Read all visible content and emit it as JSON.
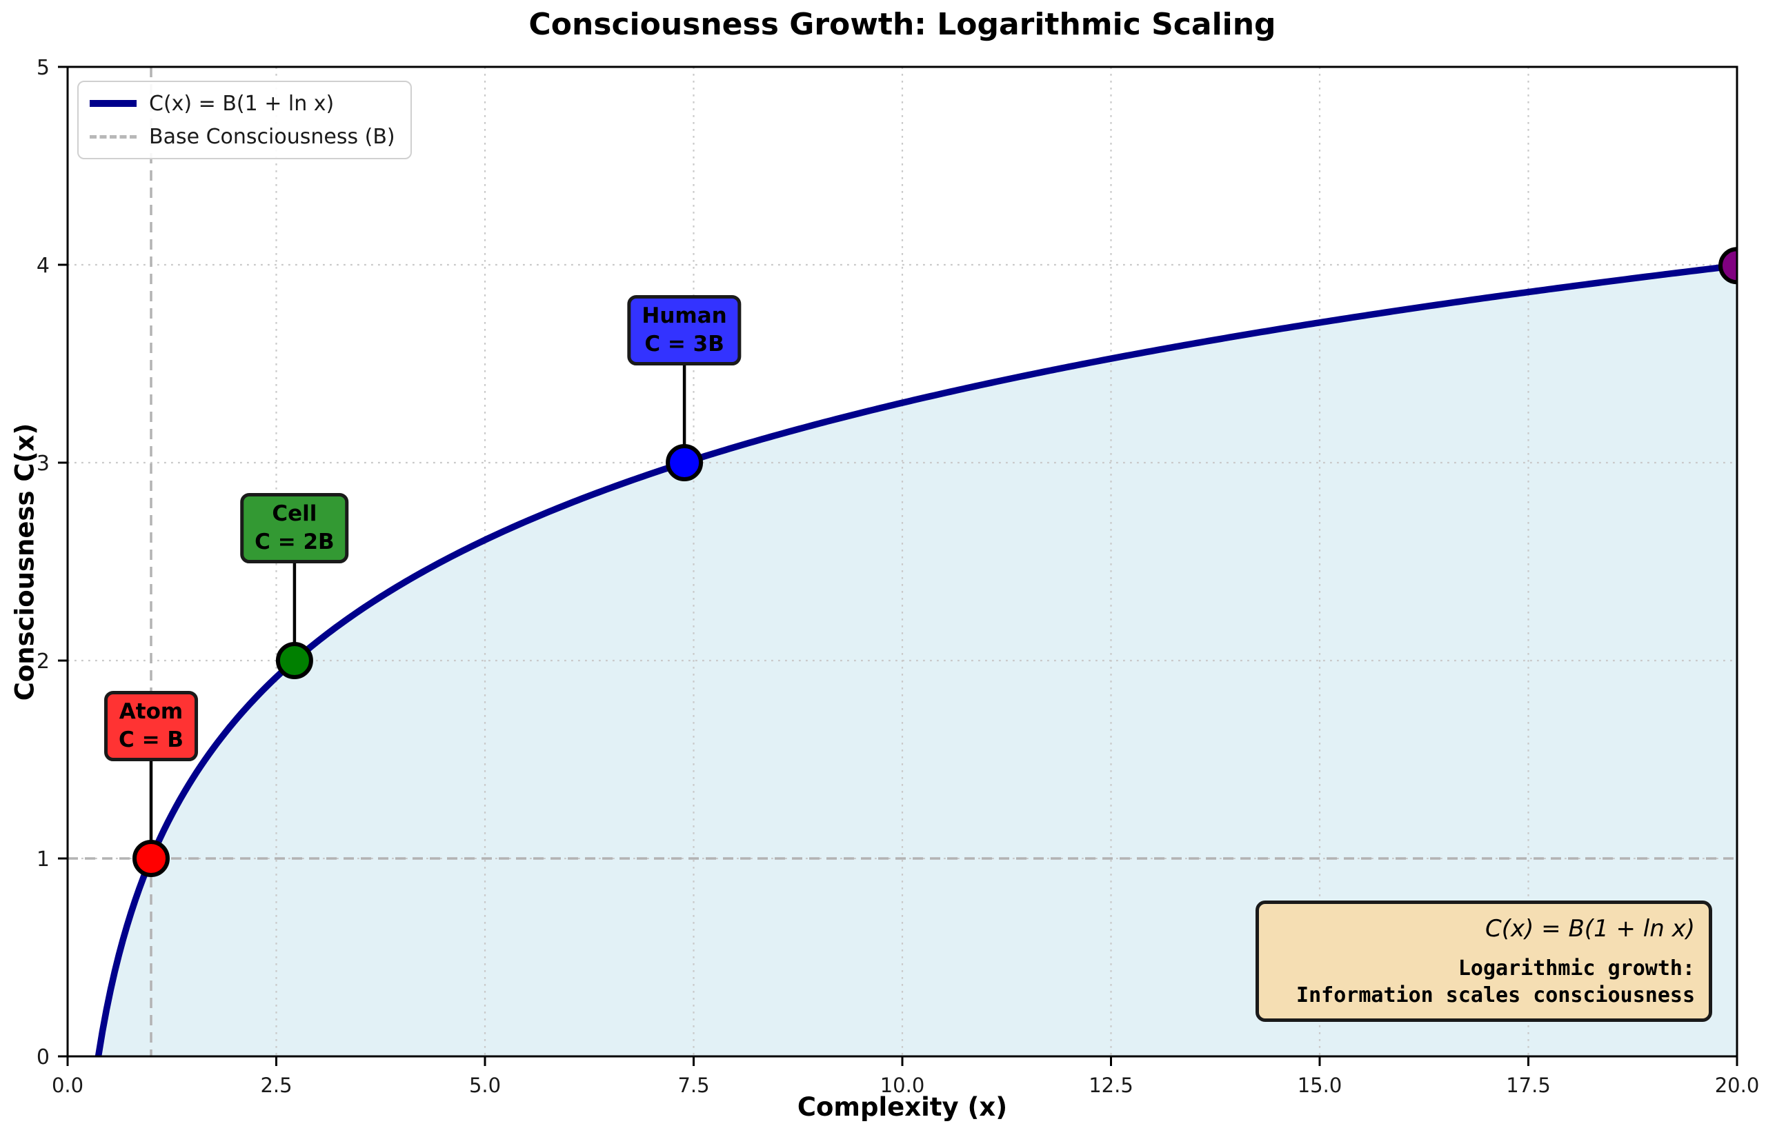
{
  "title": "Consciousness Growth: Logarithmic Scaling",
  "axes": {
    "xlabel": "Complexity (x)",
    "ylabel": "Consciousness C(x)",
    "x_ticks": [
      {
        "v": 0,
        "label": "0.0"
      },
      {
        "v": 2.5,
        "label": "2.5"
      },
      {
        "v": 5,
        "label": "5.0"
      },
      {
        "v": 7.5,
        "label": "7.5"
      },
      {
        "v": 10,
        "label": "10.0"
      },
      {
        "v": 12.5,
        "label": "12.5"
      },
      {
        "v": 15,
        "label": "15.0"
      },
      {
        "v": 17.5,
        "label": "17.5"
      },
      {
        "v": 20,
        "label": "20.0"
      }
    ],
    "y_ticks": [
      {
        "v": 0,
        "label": "0"
      },
      {
        "v": 1,
        "label": "1"
      },
      {
        "v": 2,
        "label": "2"
      },
      {
        "v": 3,
        "label": "3"
      },
      {
        "v": 4,
        "label": "4"
      },
      {
        "v": 5,
        "label": "5"
      }
    ]
  },
  "legend": {
    "entries": [
      {
        "label": "C(x) = B(1 + ln x)",
        "style": "solid",
        "color": "#00008b"
      },
      {
        "label": "Base Consciousness (B)",
        "style": "dashed",
        "color": "#b8b8b8"
      }
    ]
  },
  "chart_data": {
    "type": "line",
    "title": "Consciousness Growth: Logarithmic Scaling",
    "xlabel": "Complexity (x)",
    "ylabel": "Consciousness C(x)",
    "xlim": [
      0,
      20
    ],
    "ylim": [
      0,
      5
    ],
    "grid": "dotted",
    "legend_position": "upper-left",
    "function": "C(x) = B(1 + ln x)",
    "B": 1,
    "curve_x_range": [
      0.3679,
      20
    ],
    "curve_color": "#00008b",
    "fill_color": "rgba(173, 216, 230, 0.35)",
    "grid_color": "#c9c9c9",
    "reference_lines": {
      "vertical_x": 1,
      "horizontal_y": 1,
      "color": "#b3b3b3",
      "style": "dashed"
    },
    "points": [
      {
        "name": "Atom",
        "formula": "C = B",
        "x": 1,
        "y": 1,
        "marker_color": "#ff0000",
        "box_color": "#ff3333",
        "has_box": true
      },
      {
        "name": "Cell",
        "formula": "C = 2B",
        "x": 2.7183,
        "y": 2,
        "marker_color": "#008000",
        "box_color": "#339933",
        "has_box": true
      },
      {
        "name": "Human",
        "formula": "C = 3B",
        "x": 7.3891,
        "y": 3,
        "marker_color": "#0000ff",
        "box_color": "#3333ff",
        "has_box": true
      },
      {
        "name": "",
        "formula": "",
        "x": 20,
        "y": 3.9957,
        "marker_color": "#800080",
        "box_color": "",
        "has_box": false
      }
    ]
  },
  "info_box": {
    "formula": "C(x) = B(1 + ln x)",
    "line1": "Logarithmic growth:",
    "line2": "Information scales consciousness",
    "bg_color": "#f5deb3"
  }
}
